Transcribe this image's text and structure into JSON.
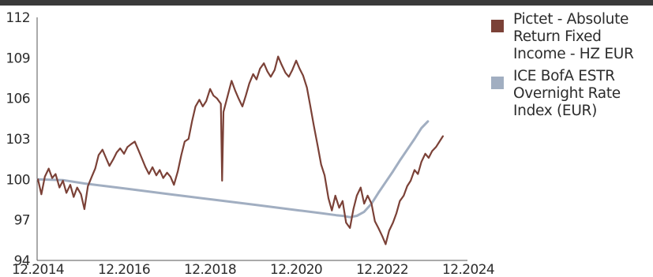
{
  "chart_data": {
    "type": "line",
    "title": "",
    "xlabel": "",
    "ylabel": "",
    "ylim": [
      94,
      112
    ],
    "y_ticks": [
      "112",
      "109",
      "106",
      "103",
      "100",
      "97",
      "94"
    ],
    "y_tick_values": [
      112,
      109,
      106,
      103,
      100,
      97,
      94
    ],
    "x_range": [
      2014.9,
      2024.9
    ],
    "x_ticks": [
      "12.2014",
      "12.2016",
      "12.2018",
      "12.2020",
      "12.2022",
      "12.2024"
    ],
    "x_tick_values": [
      2014.92,
      2016.92,
      2018.92,
      2020.92,
      2022.92,
      2024.92
    ],
    "grid": false,
    "legend_position": "right",
    "series": [
      {
        "name": "Pictet - Absolute Return Fixed Income - HZ EUR",
        "color": "#7b4137",
        "points": [
          [
            2014.92,
            100.0
          ],
          [
            2015.0,
            98.9
          ],
          [
            2015.08,
            100.2
          ],
          [
            2015.17,
            100.8
          ],
          [
            2015.25,
            100.1
          ],
          [
            2015.33,
            100.4
          ],
          [
            2015.42,
            99.4
          ],
          [
            2015.5,
            99.9
          ],
          [
            2015.58,
            99.0
          ],
          [
            2015.67,
            99.6
          ],
          [
            2015.75,
            98.7
          ],
          [
            2015.83,
            99.4
          ],
          [
            2015.92,
            98.9
          ],
          [
            2016.0,
            97.8
          ],
          [
            2016.08,
            99.5
          ],
          [
            2016.17,
            100.2
          ],
          [
            2016.25,
            100.8
          ],
          [
            2016.33,
            101.8
          ],
          [
            2016.42,
            102.2
          ],
          [
            2016.5,
            101.6
          ],
          [
            2016.58,
            101.0
          ],
          [
            2016.67,
            101.5
          ],
          [
            2016.75,
            102.0
          ],
          [
            2016.83,
            102.3
          ],
          [
            2016.92,
            101.9
          ],
          [
            2017.0,
            102.4
          ],
          [
            2017.08,
            102.6
          ],
          [
            2017.17,
            102.8
          ],
          [
            2017.25,
            102.2
          ],
          [
            2017.33,
            101.6
          ],
          [
            2017.42,
            100.9
          ],
          [
            2017.5,
            100.4
          ],
          [
            2017.58,
            100.9
          ],
          [
            2017.67,
            100.3
          ],
          [
            2017.75,
            100.7
          ],
          [
            2017.83,
            100.1
          ],
          [
            2017.92,
            100.5
          ],
          [
            2018.0,
            100.2
          ],
          [
            2018.08,
            99.6
          ],
          [
            2018.17,
            100.6
          ],
          [
            2018.25,
            101.8
          ],
          [
            2018.33,
            102.8
          ],
          [
            2018.42,
            103.0
          ],
          [
            2018.5,
            104.3
          ],
          [
            2018.58,
            105.4
          ],
          [
            2018.67,
            105.9
          ],
          [
            2018.75,
            105.4
          ],
          [
            2018.83,
            105.8
          ],
          [
            2018.92,
            106.7
          ],
          [
            2019.0,
            106.2
          ],
          [
            2019.08,
            106.0
          ],
          [
            2019.17,
            105.6
          ],
          [
            2019.2,
            99.9
          ],
          [
            2019.23,
            105.0
          ],
          [
            2019.33,
            106.2
          ],
          [
            2019.42,
            107.3
          ],
          [
            2019.5,
            106.6
          ],
          [
            2019.58,
            106.0
          ],
          [
            2019.67,
            105.4
          ],
          [
            2019.75,
            106.2
          ],
          [
            2019.83,
            107.1
          ],
          [
            2019.92,
            107.8
          ],
          [
            2020.0,
            107.4
          ],
          [
            2020.08,
            108.2
          ],
          [
            2020.17,
            108.6
          ],
          [
            2020.25,
            108.0
          ],
          [
            2020.33,
            107.6
          ],
          [
            2020.42,
            108.1
          ],
          [
            2020.5,
            109.1
          ],
          [
            2020.58,
            108.5
          ],
          [
            2020.67,
            107.9
          ],
          [
            2020.75,
            107.6
          ],
          [
            2020.83,
            108.1
          ],
          [
            2020.92,
            108.8
          ],
          [
            2021.0,
            108.2
          ],
          [
            2021.08,
            107.7
          ],
          [
            2021.17,
            106.8
          ],
          [
            2021.25,
            105.4
          ],
          [
            2021.33,
            104.0
          ],
          [
            2021.42,
            102.5
          ],
          [
            2021.5,
            101.1
          ],
          [
            2021.58,
            100.3
          ],
          [
            2021.67,
            98.6
          ],
          [
            2021.75,
            97.7
          ],
          [
            2021.83,
            98.8
          ],
          [
            2021.92,
            97.9
          ],
          [
            2022.0,
            98.4
          ],
          [
            2022.08,
            96.8
          ],
          [
            2022.17,
            96.4
          ],
          [
            2022.25,
            97.8
          ],
          [
            2022.33,
            98.8
          ],
          [
            2022.42,
            99.4
          ],
          [
            2022.5,
            98.2
          ],
          [
            2022.58,
            98.8
          ],
          [
            2022.67,
            98.2
          ],
          [
            2022.75,
            96.9
          ],
          [
            2022.83,
            96.4
          ],
          [
            2022.92,
            95.8
          ],
          [
            2023.0,
            95.2
          ],
          [
            2023.08,
            96.2
          ],
          [
            2023.17,
            96.8
          ],
          [
            2023.25,
            97.5
          ],
          [
            2023.33,
            98.4
          ],
          [
            2023.42,
            98.8
          ],
          [
            2023.5,
            99.5
          ],
          [
            2023.58,
            99.9
          ],
          [
            2023.67,
            100.7
          ],
          [
            2023.75,
            100.4
          ],
          [
            2023.83,
            101.3
          ],
          [
            2023.92,
            101.9
          ],
          [
            2024.0,
            101.6
          ],
          [
            2024.08,
            102.1
          ],
          [
            2024.17,
            102.4
          ],
          [
            2024.25,
            102.8
          ],
          [
            2024.33,
            103.2
          ]
        ]
      },
      {
        "name": "ICE BofA ESTR Overnight Rate Index (EUR)",
        "color": "#a1aec1",
        "points": [
          [
            2014.92,
            100.0
          ],
          [
            2015.5,
            99.95
          ],
          [
            2016.0,
            99.7
          ],
          [
            2016.5,
            99.5
          ],
          [
            2017.0,
            99.3
          ],
          [
            2017.5,
            99.1
          ],
          [
            2018.0,
            98.9
          ],
          [
            2018.5,
            98.7
          ],
          [
            2019.0,
            98.5
          ],
          [
            2019.5,
            98.3
          ],
          [
            2020.0,
            98.1
          ],
          [
            2020.5,
            97.9
          ],
          [
            2021.0,
            97.7
          ],
          [
            2021.5,
            97.5
          ],
          [
            2021.85,
            97.35
          ],
          [
            2022.0,
            97.3
          ],
          [
            2022.17,
            97.2
          ],
          [
            2022.33,
            97.3
          ],
          [
            2022.5,
            97.6
          ],
          [
            2022.67,
            98.2
          ],
          [
            2022.83,
            99.0
          ],
          [
            2023.0,
            99.8
          ],
          [
            2023.17,
            100.6
          ],
          [
            2023.33,
            101.4
          ],
          [
            2023.5,
            102.2
          ],
          [
            2023.67,
            103.0
          ],
          [
            2023.83,
            103.8
          ],
          [
            2023.98,
            104.3
          ]
        ]
      }
    ]
  }
}
